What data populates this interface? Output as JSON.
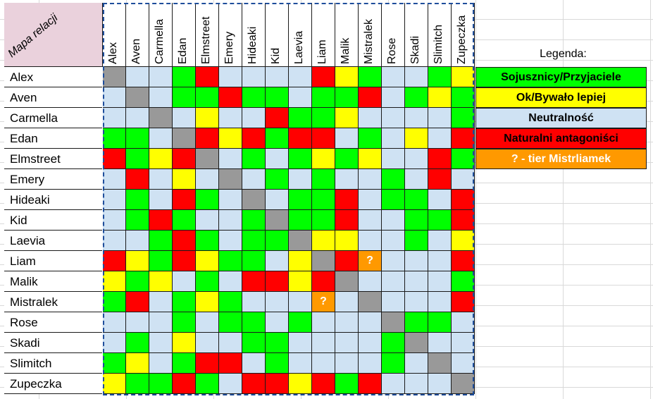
{
  "sheet": {
    "corner_label": "Mapa relacji",
    "names": [
      "Alex",
      "Aven",
      "Carmella",
      "Edan",
      "Elmstreet",
      "Emery",
      "Hideaki",
      "Kid",
      "Laevia",
      "Liam",
      "Malik",
      "Mistralek",
      "Rose",
      "Skadi",
      "Slimitch",
      "Zupeczka"
    ],
    "matrix": [
      [
        "D",
        "B",
        "B",
        "G",
        "R",
        "B",
        "B",
        "B",
        "B",
        "R",
        "Y",
        "G",
        "B",
        "B",
        "G",
        "Y"
      ],
      [
        "B",
        "D",
        "B",
        "G",
        "G",
        "R",
        "G",
        "G",
        "B",
        "G",
        "G",
        "R",
        "B",
        "G",
        "Y",
        "G"
      ],
      [
        "B",
        "B",
        "D",
        "B",
        "Y",
        "B",
        "B",
        "R",
        "G",
        "G",
        "Y",
        "B",
        "B",
        "B",
        "B",
        "G"
      ],
      [
        "G",
        "G",
        "B",
        "D",
        "R",
        "Y",
        "R",
        "G",
        "R",
        "R",
        "B",
        "G",
        "B",
        "Y",
        "B",
        "R"
      ],
      [
        "R",
        "G",
        "Y",
        "R",
        "D",
        "B",
        "G",
        "B",
        "G",
        "Y",
        "G",
        "Y",
        "B",
        "B",
        "R",
        "G"
      ],
      [
        "B",
        "R",
        "B",
        "Y",
        "B",
        "D",
        "B",
        "G",
        "B",
        "G",
        "B",
        "B",
        "G",
        "B",
        "R",
        "B"
      ],
      [
        "B",
        "G",
        "B",
        "R",
        "G",
        "B",
        "D",
        "B",
        "G",
        "G",
        "R",
        "B",
        "G",
        "G",
        "B",
        "R"
      ],
      [
        "B",
        "G",
        "R",
        "G",
        "B",
        "B",
        "G",
        "D",
        "G",
        "G",
        "R",
        "B",
        "B",
        "G",
        "G",
        "R"
      ],
      [
        "B",
        "B",
        "G",
        "R",
        "G",
        "B",
        "G",
        "G",
        "D",
        "Y",
        "Y",
        "B",
        "B",
        "G",
        "B",
        "Y"
      ],
      [
        "R",
        "Y",
        "G",
        "R",
        "Y",
        "G",
        "G",
        "B",
        "Y",
        "D",
        "R",
        "Q",
        "B",
        "B",
        "B",
        "R"
      ],
      [
        "Y",
        "G",
        "Y",
        "B",
        "G",
        "B",
        "R",
        "R",
        "Y",
        "R",
        "D",
        "B",
        "B",
        "B",
        "B",
        "G"
      ],
      [
        "G",
        "R",
        "B",
        "G",
        "Y",
        "G",
        "B",
        "B",
        "B",
        "Q",
        "B",
        "D",
        "B",
        "B",
        "B",
        "R"
      ],
      [
        "B",
        "B",
        "B",
        "G",
        "B",
        "G",
        "G",
        "B",
        "G",
        "B",
        "B",
        "B",
        "D",
        "G",
        "G",
        "B"
      ],
      [
        "B",
        "G",
        "B",
        "Y",
        "B",
        "B",
        "G",
        "G",
        "B",
        "B",
        "B",
        "B",
        "G",
        "D",
        "B",
        "B"
      ],
      [
        "G",
        "Y",
        "B",
        "G",
        "R",
        "R",
        "B",
        "G",
        "B",
        "B",
        "B",
        "B",
        "G",
        "B",
        "D",
        "B"
      ],
      [
        "Y",
        "G",
        "G",
        "R",
        "G",
        "B",
        "R",
        "R",
        "Y",
        "R",
        "G",
        "R",
        "B",
        "B",
        "B",
        "D"
      ]
    ],
    "question_mark": "?"
  },
  "legend": {
    "title": "Legenda:",
    "items": [
      {
        "label": "Sojusznicy/Przyjaciele",
        "color": "#00ff00"
      },
      {
        "label": "Ok/Bywało lepiej",
        "color": "#ffff00"
      },
      {
        "label": "Neutralność",
        "color": "#cfe2f3"
      },
      {
        "label": "Naturalni antagoniści",
        "color": "#ff0000"
      },
      {
        "label": "? - tier Mistrliamek",
        "color": "#ff9900"
      }
    ]
  },
  "colors": {
    "G": "#00ff00",
    "Y": "#ffff00",
    "B": "#cfe2f3",
    "R": "#ff0000",
    "D": "#999999",
    "Q": "#ff9900"
  }
}
